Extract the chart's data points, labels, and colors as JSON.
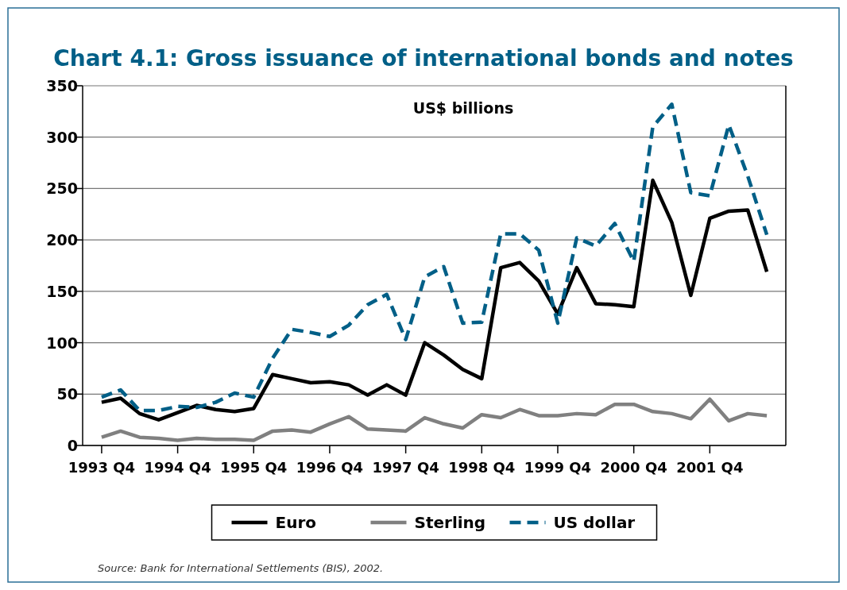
{
  "chart_data": {
    "type": "line",
    "title": "Chart 4.1: Gross issuance of international bonds and notes",
    "ylabel": "US$ billions",
    "categories": [
      "1993 Q4",
      null,
      null,
      null,
      "1994 Q4",
      null,
      null,
      null,
      "1995 Q4",
      null,
      null,
      null,
      "1996 Q4",
      null,
      null,
      null,
      "1997 Q4",
      null,
      null,
      null,
      "1998 Q4",
      null,
      null,
      null,
      "1999 Q4",
      null,
      null,
      null,
      "2000 Q4",
      null,
      null,
      null,
      "2001 Q4",
      null,
      null,
      null
    ],
    "series": [
      {
        "name": "Euro",
        "color": "#000000",
        "line_style": "solid",
        "values": [
          42,
          46,
          31,
          25,
          32,
          39,
          35,
          33,
          36,
          69,
          65,
          61,
          62,
          59,
          49,
          59,
          49,
          100,
          88,
          74,
          65,
          173,
          178,
          160,
          128,
          173,
          138,
          137,
          135,
          258,
          217,
          146,
          221,
          228,
          229,
          169
        ]
      },
      {
        "name": "Sterling",
        "color": "#808080",
        "line_style": "solid",
        "values": [
          8,
          14,
          8,
          7,
          5,
          7,
          6,
          6,
          5,
          14,
          15,
          13,
          21,
          28,
          16,
          15,
          14,
          27,
          21,
          17,
          30,
          27,
          35,
          29,
          29,
          31,
          30,
          40,
          40,
          33,
          31,
          26,
          45,
          24,
          31,
          29
        ]
      },
      {
        "name": "US dollar",
        "color": "#005f87",
        "line_style": "dashed",
        "values": [
          47,
          54,
          34,
          34,
          38,
          37,
          42,
          51,
          47,
          85,
          113,
          110,
          106,
          117,
          137,
          147,
          103,
          164,
          174,
          119,
          120,
          206,
          206,
          190,
          119,
          202,
          194,
          216,
          179,
          310,
          332,
          246,
          243,
          312,
          262,
          205
        ]
      }
    ],
    "ylim": [
      0,
      350
    ],
    "yticks": [
      0,
      50,
      100,
      150,
      200,
      250,
      300,
      350
    ],
    "grid": "y",
    "legend": "bottom",
    "annotations": [
      "Source: Bank for International Settlements (BIS), 2002."
    ]
  }
}
